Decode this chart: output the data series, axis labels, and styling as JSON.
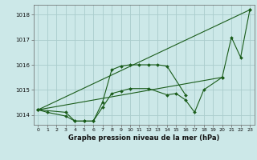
{
  "background_color": "#cce8e8",
  "grid_color": "#aacccc",
  "line_color": "#1a5c1a",
  "title": "Graphe pression niveau de la mer (hPa)",
  "xlim": [
    -0.5,
    23.5
  ],
  "ylim": [
    1013.6,
    1018.4
  ],
  "yticks": [
    1014,
    1015,
    1016,
    1017,
    1018
  ],
  "xticks": [
    0,
    1,
    2,
    3,
    4,
    5,
    6,
    7,
    8,
    9,
    10,
    11,
    12,
    13,
    14,
    15,
    16,
    17,
    18,
    19,
    20,
    21,
    22,
    23
  ],
  "series": [
    {
      "x": [
        0,
        1,
        3,
        4,
        5,
        6,
        7,
        8,
        9,
        10,
        11,
        12,
        13,
        14,
        16
      ],
      "y": [
        1014.2,
        1014.1,
        1013.95,
        1013.75,
        1013.75,
        1013.75,
        1014.5,
        1015.8,
        1015.95,
        1016.0,
        1016.0,
        1016.0,
        1016.0,
        1015.95,
        1014.8
      ]
    },
    {
      "x": [
        0,
        23
      ],
      "y": [
        1014.2,
        1018.2
      ]
    },
    {
      "x": [
        0,
        20,
        21,
        22,
        23
      ],
      "y": [
        1014.2,
        1015.5,
        1017.1,
        1016.3,
        1018.2
      ]
    },
    {
      "x": [
        0,
        3,
        4,
        5,
        6,
        7,
        8,
        9,
        10,
        12,
        14,
        15,
        16,
        17,
        18,
        20
      ],
      "y": [
        1014.2,
        1014.1,
        1013.75,
        1013.75,
        1013.75,
        1014.3,
        1014.85,
        1014.95,
        1015.05,
        1015.05,
        1014.8,
        1014.85,
        1014.6,
        1014.1,
        1015.0,
        1015.5
      ]
    }
  ]
}
